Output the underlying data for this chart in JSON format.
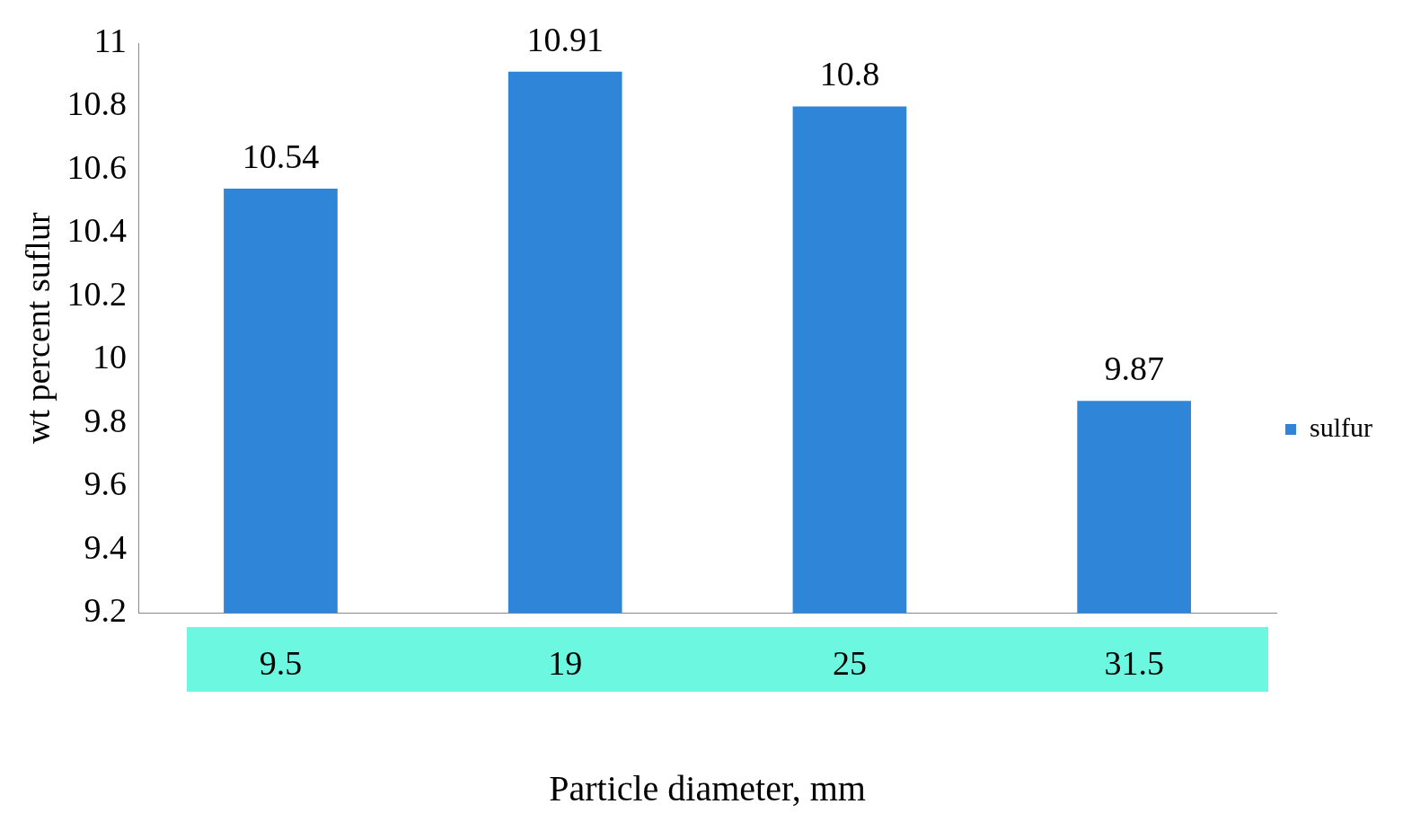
{
  "chart_data": {
    "type": "bar",
    "xlabel": "Particle diameter, mm",
    "ylabel": "wt percent suflur",
    "categories": [
      "9.5",
      "19",
      "25",
      "31.5"
    ],
    "series": [
      {
        "name": "sulfur",
        "color": "#2f86d8",
        "values": [
          10.54,
          10.91,
          10.8,
          9.87
        ]
      }
    ],
    "ylim": [
      9.2,
      11
    ],
    "yticks": [
      9.2,
      9.4,
      9.6,
      9.8,
      10,
      10.2,
      10.4,
      10.6,
      10.8,
      11
    ],
    "grid": false,
    "legend": "right",
    "data_labels": true
  }
}
